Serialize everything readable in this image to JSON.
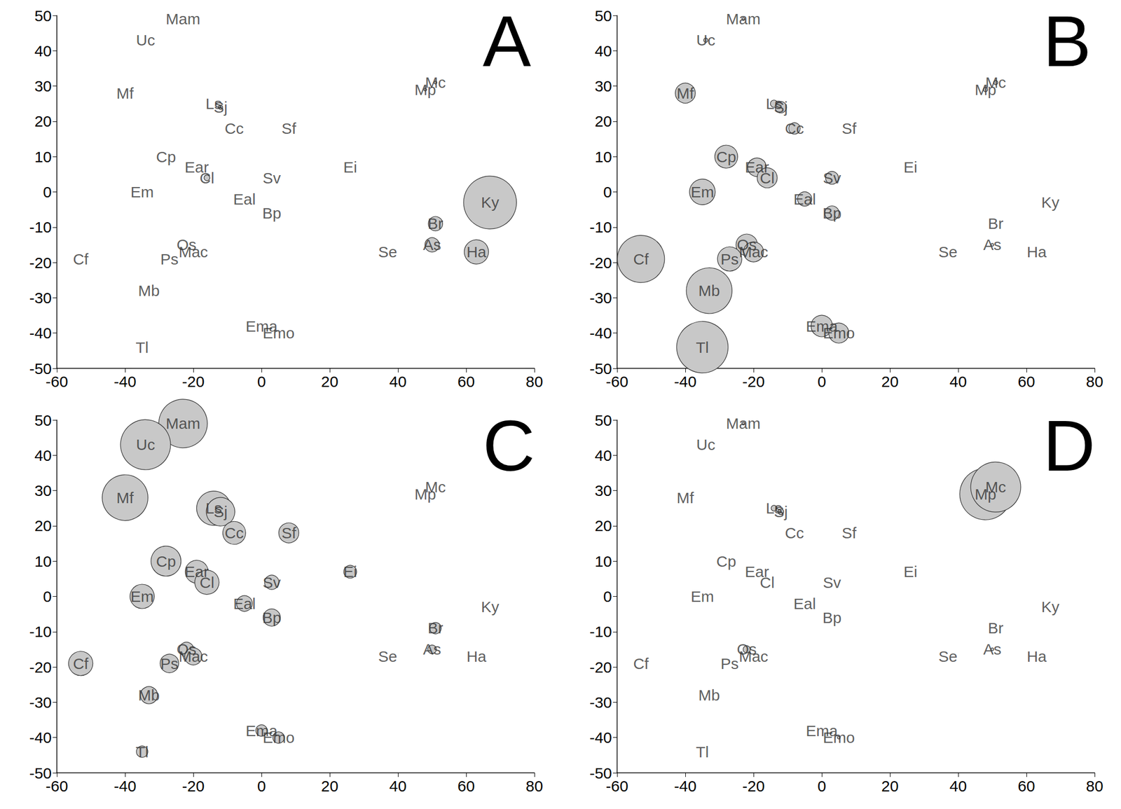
{
  "chart_data": [
    {
      "type": "scatter",
      "title": "A",
      "color": "#c8c8c8",
      "grid": false,
      "labels": [
        "Mam",
        "Uc",
        "Mf",
        "Ls",
        "Sj",
        "Cc",
        "Sf",
        "Cp",
        "Ear",
        "Cl",
        "Sv",
        "Ei",
        "Em",
        "Eal",
        "Bp",
        "Cf",
        "Os",
        "Mac",
        "Ps",
        "Mb",
        "Tl",
        "Ema",
        "Emo",
        "Mp",
        "Mc",
        "Ky",
        "Br",
        "As",
        "Ha",
        "Se"
      ],
      "x": [
        -23,
        -34,
        -40,
        -14,
        -12,
        -8,
        8,
        -28,
        -19,
        -16,
        3,
        26,
        -35,
        -5,
        3,
        -53,
        -22,
        -20,
        -27,
        -33,
        -35,
        0,
        5,
        48,
        51,
        67,
        51,
        50,
        63,
        37
      ],
      "y": [
        49,
        43,
        28,
        25,
        24,
        18,
        18,
        10,
        7,
        4,
        4,
        7,
        0,
        -2,
        -6,
        -19,
        -15,
        -17,
        -19,
        -28,
        -44,
        -38,
        -40,
        29,
        31,
        -3,
        -9,
        -15,
        -17,
        -17
      ],
      "bubble_size": [
        0,
        0,
        0,
        0,
        3,
        0,
        0,
        0,
        0,
        4,
        0,
        0,
        0,
        0,
        0,
        0,
        0,
        0,
        0,
        0,
        0,
        0,
        0,
        2,
        2,
        37,
        10,
        10,
        17,
        0
      ],
      "xlim": [
        -60,
        80
      ],
      "xticks": [
        -60,
        -40,
        -20,
        0,
        20,
        40,
        60,
        80
      ],
      "ylim": [
        -50,
        50
      ],
      "yticks": [
        -50,
        -40,
        -30,
        -20,
        -10,
        0,
        10,
        20,
        30,
        40,
        50
      ]
    },
    {
      "type": "scatter",
      "title": "B",
      "color": "#c8c8c8",
      "grid": false,
      "labels": [
        "Mam",
        "Uc",
        "Mf",
        "Ls",
        "Sj",
        "Cc",
        "Sf",
        "Cp",
        "Ear",
        "Cl",
        "Sv",
        "Ei",
        "Em",
        "Eal",
        "Bp",
        "Cf",
        "Os",
        "Mac",
        "Ps",
        "Mb",
        "Tl",
        "Ema",
        "Emo",
        "Mp",
        "Mc",
        "Ky",
        "Br",
        "As",
        "Ha",
        "Se"
      ],
      "x": [
        -23,
        -34,
        -40,
        -14,
        -12,
        -8,
        8,
        -28,
        -19,
        -16,
        3,
        26,
        -35,
        -5,
        3,
        -53,
        -22,
        -20,
        -27,
        -33,
        -35,
        0,
        5,
        48,
        51,
        67,
        51,
        50,
        63,
        37
      ],
      "y": [
        49,
        43,
        28,
        25,
        24,
        18,
        18,
        10,
        7,
        4,
        4,
        7,
        0,
        -2,
        -6,
        -19,
        -15,
        -17,
        -19,
        -28,
        -44,
        -38,
        -40,
        29,
        31,
        -3,
        -9,
        -15,
        -17,
        -17
      ],
      "bubble_size": [
        2,
        3,
        14,
        5,
        8,
        8,
        0,
        16,
        13,
        14,
        9,
        0,
        18,
        10,
        10,
        33,
        15,
        14,
        17,
        32,
        36,
        15,
        14,
        3,
        3,
        0,
        0,
        2,
        0,
        0
      ],
      "xlim": [
        -60,
        80
      ],
      "xticks": [
        -60,
        -40,
        -20,
        0,
        20,
        40,
        60,
        80
      ],
      "ylim": [
        -50,
        50
      ],
      "yticks": [
        -50,
        -40,
        -30,
        -20,
        -10,
        0,
        10,
        20,
        30,
        40,
        50
      ]
    },
    {
      "type": "scatter",
      "title": "C",
      "color": "#c8c8c8",
      "grid": false,
      "labels": [
        "Mam",
        "Uc",
        "Mf",
        "Ls",
        "Sj",
        "Cc",
        "Sf",
        "Cp",
        "Ear",
        "Cl",
        "Sv",
        "Ei",
        "Em",
        "Eal",
        "Bp",
        "Cf",
        "Os",
        "Mac",
        "Ps",
        "Mb",
        "Tl",
        "Ema",
        "Emo",
        "Mp",
        "Mc",
        "Ky",
        "Br",
        "As",
        "Ha",
        "Se"
      ],
      "x": [
        -23,
        -34,
        -40,
        -14,
        -12,
        -8,
        8,
        -28,
        -19,
        -16,
        3,
        26,
        -35,
        -5,
        3,
        -53,
        -22,
        -20,
        -27,
        -33,
        -35,
        0,
        5,
        48,
        51,
        67,
        51,
        50,
        63,
        37
      ],
      "y": [
        49,
        43,
        28,
        25,
        24,
        18,
        18,
        10,
        7,
        4,
        4,
        7,
        0,
        -2,
        -6,
        -19,
        -15,
        -17,
        -19,
        -28,
        -44,
        -38,
        -40,
        29,
        31,
        -3,
        -9,
        -15,
        -17,
        -17
      ],
      "bubble_size": [
        34,
        35,
        32,
        24,
        20,
        16,
        14,
        21,
        16,
        17,
        10,
        9,
        17,
        11,
        12,
        17,
        10,
        12,
        13,
        12,
        8,
        8,
        8,
        0,
        0,
        0,
        8,
        6,
        0,
        0
      ],
      "xlim": [
        -60,
        80
      ],
      "xticks": [
        -60,
        -40,
        -20,
        0,
        20,
        40,
        60,
        80
      ],
      "ylim": [
        -50,
        50
      ],
      "yticks": [
        -50,
        -40,
        -30,
        -20,
        -10,
        0,
        10,
        20,
        30,
        40,
        50
      ]
    },
    {
      "type": "scatter",
      "title": "D",
      "color": "#c8c8c8",
      "grid": false,
      "labels": [
        "Mam",
        "Uc",
        "Mf",
        "Ls",
        "Sj",
        "Cc",
        "Sf",
        "Cp",
        "Ear",
        "Cl",
        "Sv",
        "Ei",
        "Em",
        "Eal",
        "Bp",
        "Cf",
        "Os",
        "Mac",
        "Ps",
        "Mb",
        "Tl",
        "Ema",
        "Emo",
        "Mp",
        "Mc",
        "Ky",
        "Br",
        "As",
        "Ha",
        "Se"
      ],
      "x": [
        -23,
        -34,
        -40,
        -14,
        -12,
        -8,
        8,
        -28,
        -19,
        -16,
        3,
        26,
        -35,
        -5,
        3,
        -53,
        -22,
        -20,
        -27,
        -33,
        -35,
        0,
        5,
        48,
        51,
        67,
        51,
        50,
        63,
        37
      ],
      "y": [
        49,
        43,
        28,
        25,
        24,
        18,
        18,
        10,
        7,
        4,
        4,
        7,
        0,
        -2,
        -6,
        -19,
        -15,
        -17,
        -19,
        -28,
        -44,
        -38,
        -40,
        29,
        31,
        -3,
        -9,
        -15,
        -17,
        -17
      ],
      "bubble_size": [
        2,
        0,
        0,
        4,
        4,
        0,
        0,
        0,
        0,
        0,
        0,
        0,
        0,
        0,
        0,
        0,
        5,
        0,
        0,
        0,
        0,
        0,
        2,
        36,
        35,
        0,
        0,
        2,
        0,
        0
      ],
      "xlim": [
        -60,
        80
      ],
      "xticks": [
        -60,
        -40,
        -20,
        0,
        20,
        40,
        60,
        80
      ],
      "ylim": [
        -50,
        50
      ],
      "yticks": [
        -50,
        -40,
        -30,
        -20,
        -10,
        0,
        10,
        20,
        30,
        40,
        50
      ]
    }
  ]
}
